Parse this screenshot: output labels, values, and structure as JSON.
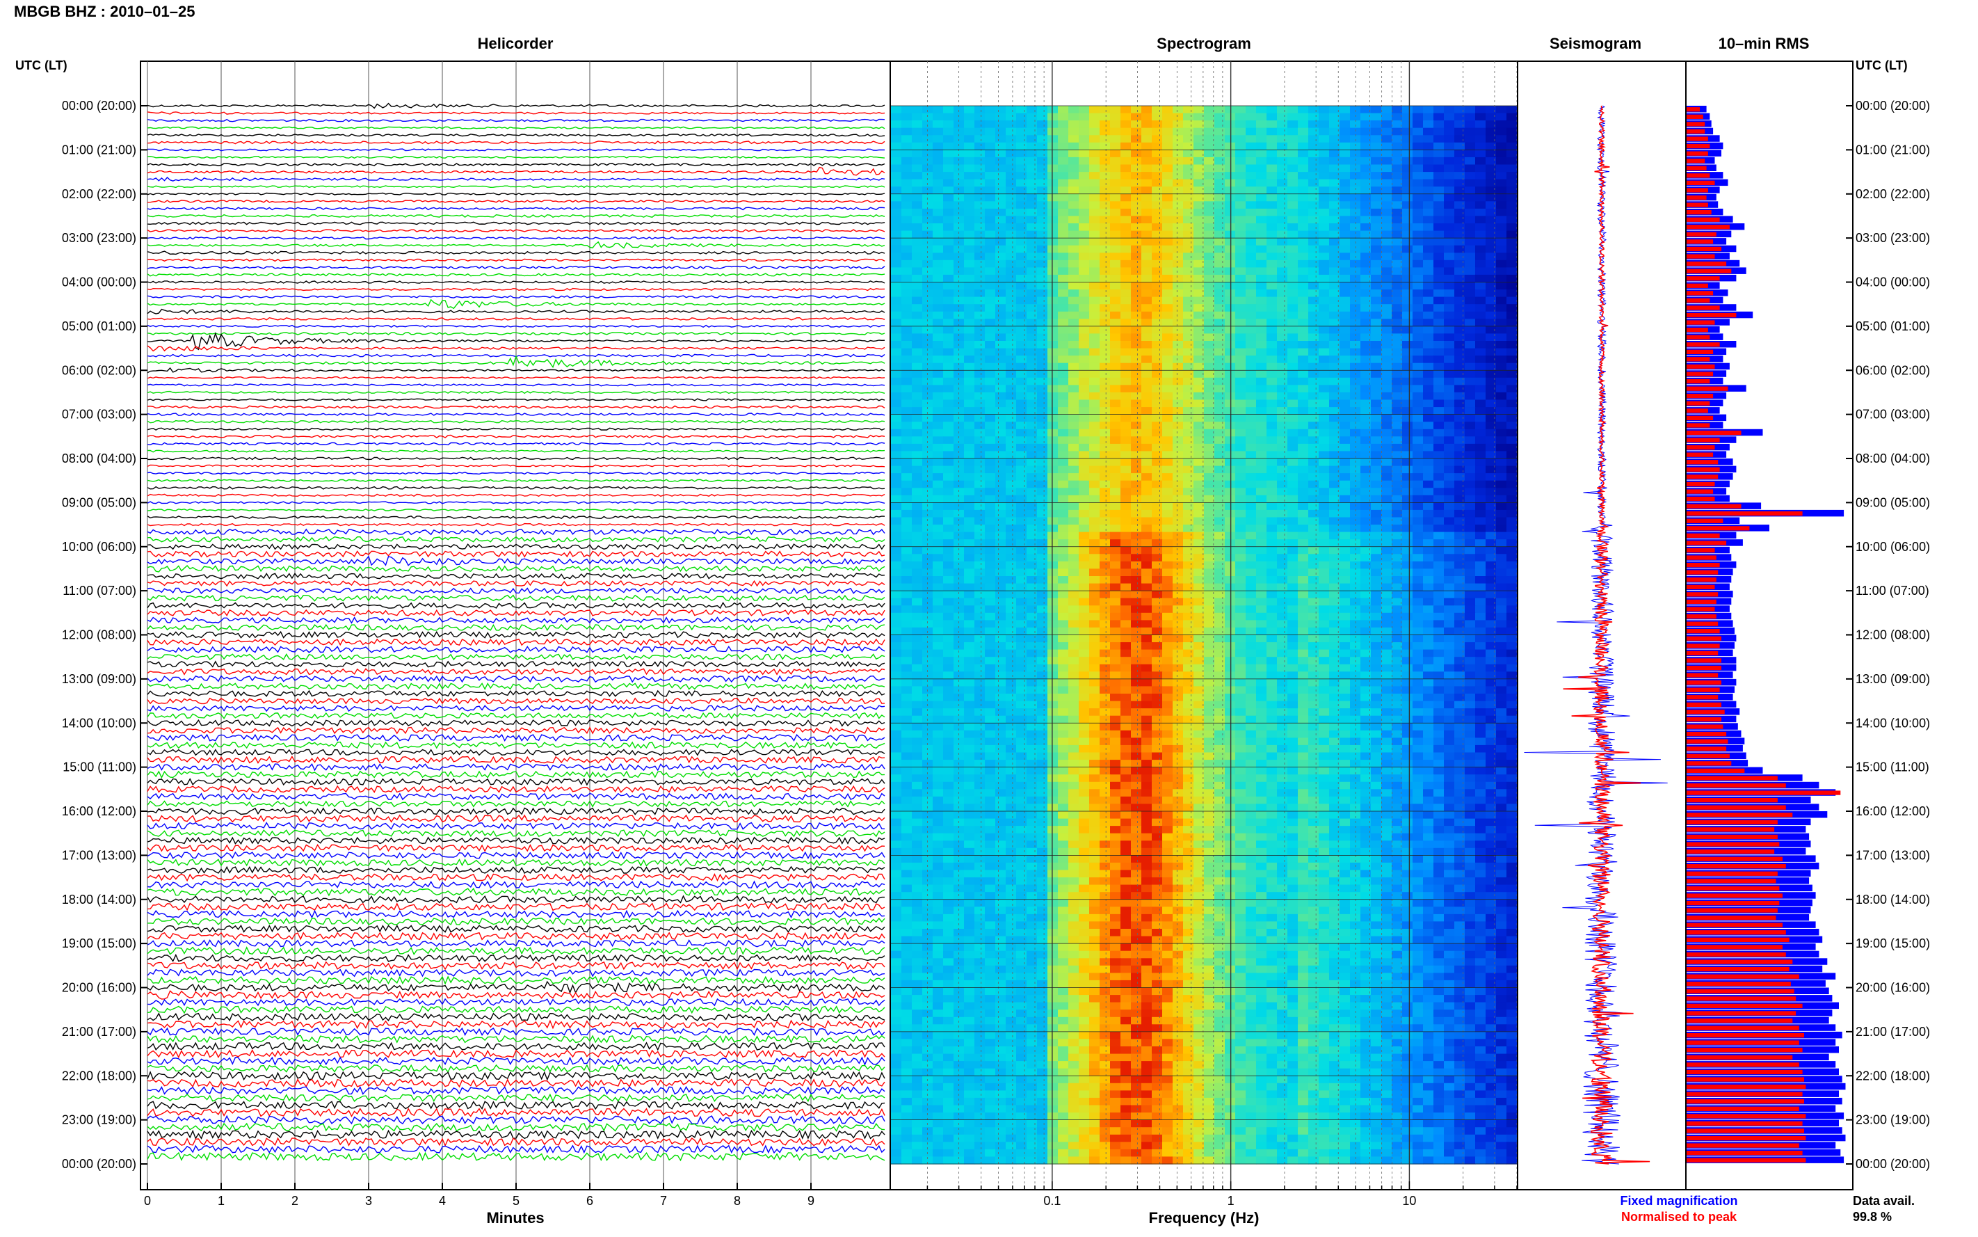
{
  "header": {
    "title": "MBGB BHZ : 2010–01–25",
    "utc_label_left": "UTC (LT)",
    "utc_label_right": "UTC (LT)"
  },
  "panels": {
    "helicorder": "Helicorder",
    "spectrogram": "Spectrogram",
    "seismogram": "Seismogram",
    "rms": "10–min RMS"
  },
  "axes": {
    "minutes_label": "Minutes",
    "frequency_label": "Frequency (Hz)"
  },
  "legend": {
    "fixed": "Fixed magnification",
    "normalised": "Normalised to peak",
    "fixed_color": "#0000ff",
    "normalised_color": "#ff0000"
  },
  "data_avail": {
    "label": "Data avail.",
    "value": "99.8 %"
  },
  "colors": {
    "trace_cycle": [
      "#000000",
      "#ff0000",
      "#0000ff",
      "#00dd00"
    ],
    "rms_fixed": "#0000ff",
    "rms_normalised": "#ff0000"
  },
  "chart_data": [
    {
      "type": "line",
      "panel": "Helicorder",
      "xlabel": "Minutes",
      "x_ticks": [
        0,
        1,
        2,
        3,
        4,
        5,
        6,
        7,
        8,
        9
      ],
      "xlim": [
        0,
        10
      ],
      "time_labels": [
        "00:00 (20:00)",
        "01:00 (21:00)",
        "02:00 (22:00)",
        "03:00 (23:00)",
        "04:00 (00:00)",
        "05:00 (01:00)",
        "06:00 (02:00)",
        "07:00 (03:00)",
        "08:00 (04:00)",
        "09:00 (05:00)",
        "10:00 (06:00)",
        "11:00 (07:00)",
        "12:00 (08:00)",
        "13:00 (09:00)",
        "14:00 (10:00)",
        "15:00 (11:00)",
        "16:00 (12:00)",
        "17:00 (13:00)",
        "18:00 (14:00)",
        "19:00 (15:00)",
        "20:00 (16:00)",
        "21:00 (17:00)",
        "22:00 (18:00)",
        "23:00 (19:00)",
        "00:00 (20:00)"
      ],
      "lines_per_hour": 6,
      "events": [
        {
          "hour": 0.0,
          "minute": 3.0,
          "amp": 2.5
        },
        {
          "hour": 1.5,
          "minute": 9.1,
          "amp": 6
        },
        {
          "hour": 3.15,
          "minute": 6.0,
          "amp": 4
        },
        {
          "hour": 4.5,
          "minute": 3.8,
          "amp": 8
        },
        {
          "hour": 5.4,
          "minute": 0.6,
          "amp": 14
        },
        {
          "hour": 5.9,
          "minute": 4.9,
          "amp": 10
        },
        {
          "hour": 10.3,
          "minute": 3.0,
          "amp": 5
        },
        {
          "hour": 20.0,
          "minute": 5.3,
          "amp": 5
        }
      ]
    },
    {
      "type": "heatmap",
      "panel": "Spectrogram",
      "xlabel": "Frequency (Hz)",
      "x_scale": "log",
      "x_ticks": [
        0.1,
        1,
        10
      ],
      "x_tick_labels": [
        "0.1",
        "1",
        "10"
      ],
      "xlim": [
        0.0125,
        40
      ],
      "peak_frequency_hz": 0.3
    },
    {
      "type": "line",
      "panel": "Seismogram",
      "series": [
        {
          "name": "Fixed magnification",
          "color": "#0000ff"
        },
        {
          "name": "Normalised to peak",
          "color": "#ff0000"
        }
      ]
    },
    {
      "type": "bar",
      "panel": "10–min RMS",
      "orientation": "horizontal",
      "bins": 144,
      "series": [
        {
          "name": "Fixed magnification",
          "color": "#0000ff",
          "values": [
            0.12,
            0.14,
            0.15,
            0.16,
            0.2,
            0.22,
            0.21,
            0.17,
            0.18,
            0.22,
            0.25,
            0.2,
            0.18,
            0.19,
            0.22,
            0.28,
            0.35,
            0.27,
            0.24,
            0.3,
            0.26,
            0.32,
            0.36,
            0.3,
            0.2,
            0.25,
            0.22,
            0.3,
            0.4,
            0.26,
            0.2,
            0.22,
            0.3,
            0.24,
            0.22,
            0.26,
            0.24,
            0.22,
            0.36,
            0.24,
            0.22,
            0.2,
            0.24,
            0.22,
            0.46,
            0.3,
            0.26,
            0.24,
            0.28,
            0.3,
            0.28,
            0.26,
            0.24,
            0.26,
            0.45,
            0.95,
            0.32,
            0.5,
            0.3,
            0.34,
            0.26,
            0.27,
            0.3,
            0.28,
            0.27,
            0.26,
            0.28,
            0.27,
            0.26,
            0.27,
            0.28,
            0.29,
            0.3,
            0.29,
            0.28,
            0.3,
            0.3,
            0.28,
            0.3,
            0.29,
            0.28,
            0.3,
            0.32,
            0.3,
            0.31,
            0.33,
            0.35,
            0.34,
            0.36,
            0.37,
            0.46,
            0.7,
            0.8,
            0.9,
            0.75,
            0.8,
            0.85,
            0.75,
            0.72,
            0.74,
            0.75,
            0.72,
            0.78,
            0.8,
            0.75,
            0.74,
            0.76,
            0.78,
            0.76,
            0.75,
            0.74,
            0.78,
            0.8,
            0.82,
            0.78,
            0.8,
            0.85,
            0.82,
            0.9,
            0.84,
            0.86,
            0.88,
            0.92,
            0.88,
            0.86,
            0.9,
            0.94,
            0.9,
            0.92,
            0.86,
            0.9,
            0.92,
            0.94,
            0.96,
            0.92,
            0.94,
            0.9,
            0.95,
            0.92,
            0.94,
            0.96,
            0.9,
            0.93,
            0.95
          ]
        },
        {
          "name": "Normalised to peak",
          "color": "#ff0000",
          "values": [
            0.08,
            0.1,
            0.11,
            0.11,
            0.13,
            0.14,
            0.13,
            0.11,
            0.12,
            0.14,
            0.17,
            0.13,
            0.12,
            0.13,
            0.15,
            0.2,
            0.26,
            0.18,
            0.16,
            0.21,
            0.17,
            0.24,
            0.27,
            0.2,
            0.13,
            0.16,
            0.14,
            0.2,
            0.3,
            0.17,
            0.13,
            0.14,
            0.2,
            0.16,
            0.14,
            0.17,
            0.16,
            0.14,
            0.25,
            0.16,
            0.14,
            0.13,
            0.16,
            0.14,
            0.33,
            0.2,
            0.17,
            0.16,
            0.19,
            0.2,
            0.19,
            0.17,
            0.16,
            0.17,
            0.33,
            0.7,
            0.22,
            0.38,
            0.2,
            0.24,
            0.17,
            0.18,
            0.2,
            0.19,
            0.18,
            0.17,
            0.19,
            0.18,
            0.17,
            0.18,
            0.19,
            0.2,
            0.21,
            0.2,
            0.19,
            0.21,
            0.21,
            0.19,
            0.21,
            0.2,
            0.19,
            0.21,
            0.23,
            0.21,
            0.22,
            0.24,
            0.25,
            0.24,
            0.26,
            0.27,
            0.35,
            0.55,
            0.6,
            0.93,
            0.55,
            0.6,
            0.64,
            0.55,
            0.53,
            0.55,
            0.56,
            0.53,
            0.58,
            0.6,
            0.55,
            0.54,
            0.56,
            0.58,
            0.56,
            0.55,
            0.54,
            0.58,
            0.6,
            0.62,
            0.58,
            0.6,
            0.64,
            0.62,
            0.68,
            0.63,
            0.65,
            0.66,
            0.7,
            0.66,
            0.64,
            0.68,
            0.71,
            0.68,
            0.7,
            0.64,
            0.68,
            0.7,
            0.71,
            0.72,
            0.7,
            0.71,
            0.68,
            0.72,
            0.7,
            0.71,
            0.72,
            0.68,
            0.7,
            0.72
          ]
        }
      ]
    }
  ]
}
